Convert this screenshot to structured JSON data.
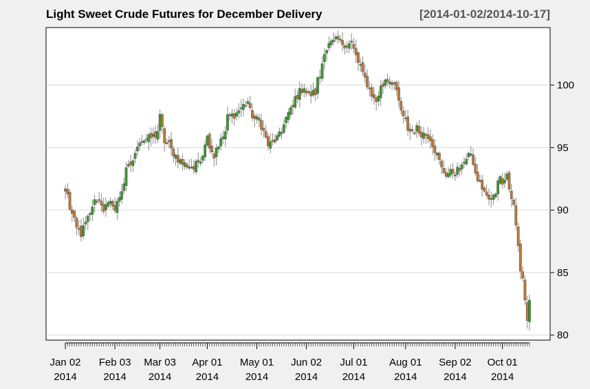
{
  "chart_data": {
    "type": "candlestick",
    "title": "Light Sweet Crude Futures for December Delivery",
    "date_range": "[2014-01-02/2014-10-17]",
    "xlabel": "",
    "ylabel": "",
    "ylim": [
      79.6,
      104.6
    ],
    "yticks": [
      80,
      85,
      90,
      95,
      100
    ],
    "grid": true,
    "x_ticks": [
      {
        "date": "2014-01-02",
        "line1": "Jan 02",
        "line2": "2014"
      },
      {
        "date": "2014-02-03",
        "line1": "Feb 03",
        "line2": "2014"
      },
      {
        "date": "2014-03-03",
        "line1": "Mar 03",
        "line2": "2014"
      },
      {
        "date": "2014-04-01",
        "line1": "Apr 01",
        "line2": "2014"
      },
      {
        "date": "2014-05-01",
        "line1": "May 01",
        "line2": "2014"
      },
      {
        "date": "2014-06-02",
        "line1": "Jun 02",
        "line2": "2014"
      },
      {
        "date": "2014-07-01",
        "line1": "Jul 01",
        "line2": "2014"
      },
      {
        "date": "2014-08-01",
        "line1": "Aug 01",
        "line2": "2014"
      },
      {
        "date": "2014-09-02",
        "line1": "Sep 02",
        "line2": "2014"
      },
      {
        "date": "2014-10-01",
        "line1": "Oct 01",
        "line2": "2014"
      }
    ],
    "colors": {
      "up": "#3a9c2e",
      "down": "#c07a35",
      "wick": "#888888",
      "grid": "#d9d9d9"
    },
    "close_anchors": [
      [
        "2014-01-02",
        91.5
      ],
      [
        "2014-01-06",
        90.2
      ],
      [
        "2014-01-09",
        88.5
      ],
      [
        "2014-01-13",
        88.1
      ],
      [
        "2014-01-16",
        89.3
      ],
      [
        "2014-01-22",
        90.9
      ],
      [
        "2014-01-27",
        90.1
      ],
      [
        "2014-01-31",
        90.6
      ],
      [
        "2014-02-03",
        90.0
      ],
      [
        "2014-02-07",
        92.2
      ],
      [
        "2014-02-13",
        94.0
      ],
      [
        "2014-02-18",
        95.6
      ],
      [
        "2014-02-24",
        95.7
      ],
      [
        "2014-02-27",
        96.0
      ],
      [
        "2014-03-03",
        97.4
      ],
      [
        "2014-03-05",
        95.5
      ],
      [
        "2014-03-10",
        94.8
      ],
      [
        "2014-03-14",
        93.9
      ],
      [
        "2014-03-19",
        93.6
      ],
      [
        "2014-03-24",
        93.3
      ],
      [
        "2014-03-28",
        94.5
      ],
      [
        "2014-04-01",
        95.8
      ],
      [
        "2014-04-04",
        94.3
      ],
      [
        "2014-04-09",
        95.5
      ],
      [
        "2014-04-14",
        97.4
      ],
      [
        "2014-04-21",
        98.0
      ],
      [
        "2014-04-25",
        98.7
      ],
      [
        "2014-04-30",
        97.3
      ],
      [
        "2014-05-05",
        96.8
      ],
      [
        "2014-05-08",
        95.2
      ],
      [
        "2014-05-12",
        95.4
      ],
      [
        "2014-05-16",
        96.1
      ],
      [
        "2014-05-21",
        97.7
      ],
      [
        "2014-05-27",
        99.2
      ],
      [
        "2014-05-30",
        99.9
      ],
      [
        "2014-06-03",
        99.2
      ],
      [
        "2014-06-06",
        99.4
      ],
      [
        "2014-06-10",
        100.7
      ],
      [
        "2014-06-12",
        102.8
      ],
      [
        "2014-06-17",
        103.3
      ],
      [
        "2014-06-20",
        103.6
      ],
      [
        "2014-06-25",
        103.3
      ],
      [
        "2014-06-30",
        103.3
      ],
      [
        "2014-07-03",
        101.8
      ],
      [
        "2014-07-08",
        100.5
      ],
      [
        "2014-07-11",
        99.3
      ],
      [
        "2014-07-15",
        98.7
      ],
      [
        "2014-07-17",
        99.8
      ],
      [
        "2014-07-21",
        100.5
      ],
      [
        "2014-07-24",
        100.3
      ],
      [
        "2014-07-28",
        99.3
      ],
      [
        "2014-07-31",
        97.3
      ],
      [
        "2014-08-05",
        96.3
      ],
      [
        "2014-08-08",
        96.5
      ],
      [
        "2014-08-13",
        96.1
      ],
      [
        "2014-08-18",
        95.8
      ],
      [
        "2014-08-22",
        93.9
      ],
      [
        "2014-08-27",
        92.9
      ],
      [
        "2014-09-02",
        93.1
      ],
      [
        "2014-09-05",
        93.3
      ],
      [
        "2014-09-10",
        94.5
      ],
      [
        "2014-09-15",
        92.8
      ],
      [
        "2014-09-19",
        91.5
      ],
      [
        "2014-09-24",
        90.7
      ],
      [
        "2014-09-29",
        92.6
      ],
      [
        "2014-10-01",
        92.4
      ],
      [
        "2014-10-03",
        92.9
      ],
      [
        "2014-10-06",
        91.7
      ],
      [
        "2014-10-08",
        90.3
      ],
      [
        "2014-10-10",
        87.1
      ],
      [
        "2014-10-14",
        84.6
      ],
      [
        "2014-10-16",
        81.1
      ],
      [
        "2014-10-17",
        82.8
      ]
    ]
  }
}
